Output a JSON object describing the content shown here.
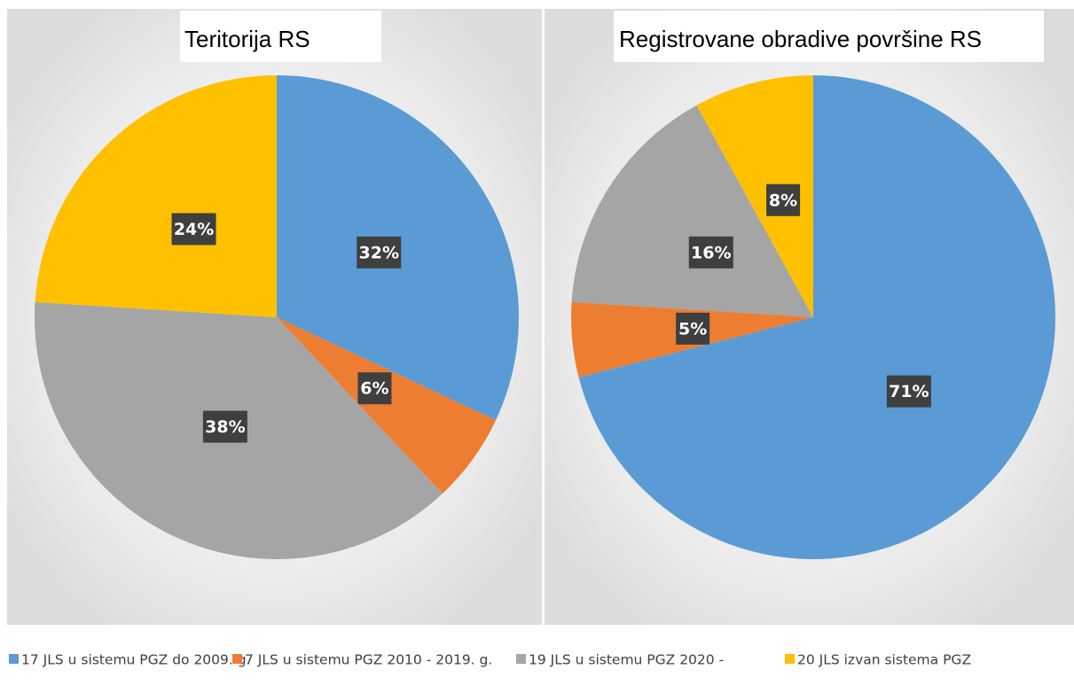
{
  "chart_data": [
    {
      "type": "pie",
      "title": "Teritorija RS",
      "values": [
        32,
        6,
        38,
        24
      ],
      "value_labels": [
        "32%",
        "6%",
        "38%",
        "24%"
      ]
    },
    {
      "type": "pie",
      "title": "Registrovane obradive površine RS",
      "values": [
        71,
        5,
        16,
        8
      ],
      "value_labels": [
        "71%",
        "5%",
        "16%",
        "8%"
      ]
    }
  ],
  "legend": {
    "labels": [
      "17 JLS u sistemu PGZ do 2009. g.",
      "7 JLS u sistemu PGZ 2010 - 2019. g.",
      "19 JLS u sistemu PGZ 2020 -",
      "20 JLS izvan sistema PGZ"
    ],
    "colors": [
      "#5b9bd5",
      "#ed7d31",
      "#a5a5a5",
      "#ffc000"
    ]
  }
}
